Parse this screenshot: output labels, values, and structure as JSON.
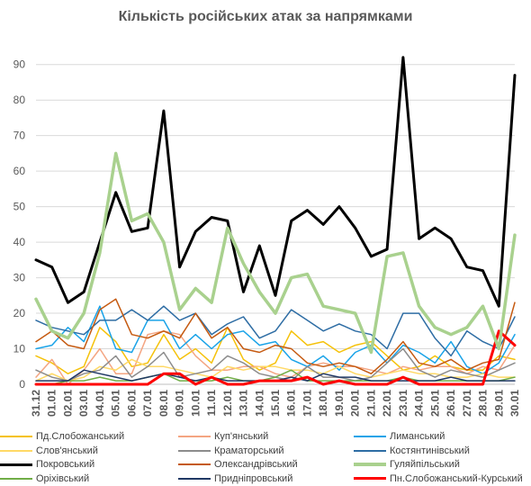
{
  "chart_data": {
    "type": "line",
    "title": "Кількість російських атак за напрямками",
    "xlabel": "",
    "ylabel": "",
    "ylim": [
      0,
      95
    ],
    "yticks": [
      0,
      10,
      20,
      30,
      40,
      50,
      60,
      70,
      80,
      90
    ],
    "grid": true,
    "legend_position": "bottom",
    "categories": [
      "31.12",
      "01.01",
      "02.01",
      "03.01",
      "04.01",
      "05.01",
      "06.01",
      "07.01",
      "08.01",
      "09.01",
      "10.01",
      "11.01",
      "12.01",
      "13.01",
      "14.01",
      "15.01",
      "16.01",
      "17.01",
      "18.01",
      "19.01",
      "20.01",
      "21.01",
      "22.01",
      "23.01",
      "24.01",
      "25.01",
      "26.01",
      "27.01",
      "28.01",
      "29.01",
      "30.01"
    ],
    "series": [
      {
        "name": "Пд.Слобожанський",
        "color": "#f5c20b",
        "width": 1.5,
        "values": [
          8,
          6,
          3,
          5,
          16,
          12,
          5,
          6,
          14,
          7,
          10,
          6,
          16,
          7,
          4,
          6,
          15,
          11,
          12,
          9,
          11,
          12,
          8,
          4,
          5,
          8,
          5,
          4,
          4,
          8,
          7
        ]
      },
      {
        "name": "Куп'янський",
        "color": "#f4a582",
        "width": 1.5,
        "values": [
          2,
          7,
          0,
          4,
          10,
          3,
          3,
          14,
          15,
          14,
          8,
          4,
          4,
          5,
          5,
          3,
          2,
          5,
          6,
          5,
          5,
          4,
          3,
          5,
          4,
          5,
          5,
          3,
          5,
          4,
          11
        ]
      },
      {
        "name": "Лиманський",
        "color": "#1aa3e8",
        "width": 1.5,
        "values": [
          10,
          11,
          16,
          12,
          22,
          10,
          9,
          18,
          18,
          10,
          14,
          10,
          14,
          15,
          11,
          12,
          7,
          5,
          8,
          4,
          9,
          11,
          6,
          11,
          9,
          6,
          12,
          5,
          3,
          6,
          14
        ]
      },
      {
        "name": "Слов'янський",
        "color": "#ffd966",
        "width": 1.5,
        "values": [
          1,
          3,
          1,
          2,
          5,
          4,
          7,
          5,
          5,
          4,
          3,
          2,
          5,
          4,
          5,
          5,
          4,
          4,
          3,
          5,
          3,
          2,
          3,
          4,
          3,
          3,
          2,
          2,
          3,
          2,
          2
        ]
      },
      {
        "name": "Краматорський",
        "color": "#8c8c8c",
        "width": 1.5,
        "values": [
          4,
          2,
          1,
          3,
          4,
          8,
          2,
          5,
          9,
          2,
          3,
          4,
          8,
          6,
          3,
          2,
          1,
          5,
          2,
          2,
          1,
          2,
          6,
          10,
          4,
          2,
          4,
          3,
          2,
          4,
          6
        ]
      },
      {
        "name": "Костянтинівський",
        "color": "#2e6da4",
        "width": 1.5,
        "values": [
          18,
          16,
          15,
          14,
          18,
          18,
          21,
          18,
          22,
          18,
          20,
          14,
          17,
          19,
          13,
          15,
          21,
          18,
          15,
          17,
          15,
          14,
          10,
          20,
          20,
          13,
          8,
          15,
          12,
          10,
          19
        ]
      },
      {
        "name": "Покровський",
        "color": "#000000",
        "width": 3,
        "values": [
          35,
          33,
          23,
          26,
          40,
          54,
          43,
          44,
          77,
          33,
          43,
          47,
          46,
          26,
          39,
          25,
          46,
          49,
          45,
          50,
          44,
          36,
          38,
          92,
          41,
          44,
          41,
          33,
          32,
          22,
          87
        ]
      },
      {
        "name": "Олександрівський",
        "color": "#c55a11",
        "width": 1.5,
        "values": [
          12,
          15,
          11,
          10,
          21,
          24,
          14,
          13,
          15,
          13,
          20,
          13,
          16,
          10,
          9,
          11,
          10,
          6,
          5,
          6,
          5,
          3,
          7,
          12,
          6,
          5,
          7,
          4,
          6,
          7,
          23
        ]
      },
      {
        "name": "Гуляйпільський",
        "color": "#a9d18e",
        "width": 3.5,
        "values": [
          24,
          15,
          13,
          20,
          37,
          65,
          46,
          48,
          40,
          21,
          27,
          23,
          44,
          34,
          26,
          20,
          30,
          31,
          22,
          21,
          20,
          9,
          36,
          37,
          22,
          16,
          14,
          16,
          22,
          10,
          42
        ]
      },
      {
        "name": "Оріхівський",
        "color": "#70ad47",
        "width": 1.5,
        "values": [
          0,
          0,
          1,
          1,
          2,
          1,
          1,
          2,
          3,
          1,
          1,
          1,
          2,
          1,
          1,
          2,
          4,
          1,
          1,
          1,
          1,
          1,
          1,
          2,
          1,
          1,
          1,
          1,
          1,
          1,
          2
        ]
      },
      {
        "name": "Придніпровський",
        "color": "#1f3864",
        "width": 1.5,
        "values": [
          1,
          1,
          1,
          4,
          3,
          2,
          1,
          2,
          3,
          2,
          1,
          2,
          1,
          1,
          1,
          1,
          2,
          1,
          3,
          2,
          2,
          1,
          1,
          1,
          1,
          1,
          2,
          1,
          1,
          1,
          1
        ]
      },
      {
        "name": "Пн.Слобожанський-Курський",
        "color": "#ff0000",
        "width": 3,
        "values": [
          0,
          0,
          0,
          0,
          0,
          0,
          0,
          0,
          3,
          3,
          0,
          2,
          0,
          0,
          1,
          1,
          1,
          2,
          0,
          1,
          0,
          0,
          0,
          2,
          0,
          0,
          0,
          0,
          0,
          15,
          11
        ]
      }
    ]
  }
}
